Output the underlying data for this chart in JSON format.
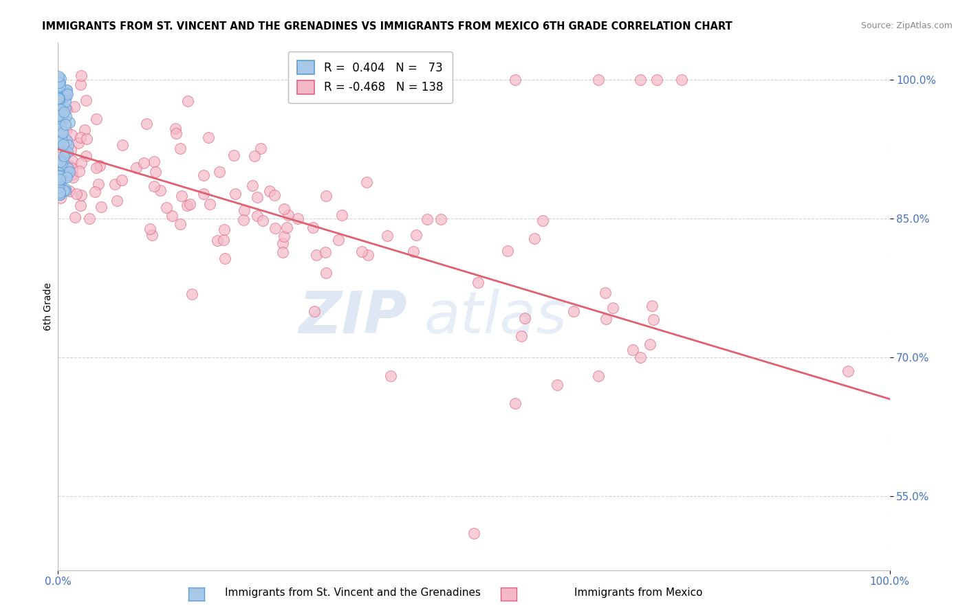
{
  "title": "IMMIGRANTS FROM ST. VINCENT AND THE GRENADINES VS IMMIGRANTS FROM MEXICO 6TH GRADE CORRELATION CHART",
  "source": "Source: ZipAtlas.com",
  "ylabel": "6th Grade",
  "xlim": [
    0.0,
    1.0
  ],
  "ylim": [
    0.47,
    1.04
  ],
  "yticks": [
    0.55,
    0.7,
    0.85,
    1.0
  ],
  "ytick_labels": [
    "55.0%",
    "70.0%",
    "85.0%",
    "100.0%"
  ],
  "blue_color": "#a8c8e8",
  "pink_color": "#f5b8c8",
  "blue_edge": "#5b9bd5",
  "pink_edge": "#e06080",
  "line_color_pink": "#e06070",
  "R_blue": 0.404,
  "N_blue": 73,
  "R_pink": -0.468,
  "N_pink": 138,
  "legend_label_blue": "Immigrants from St. Vincent and the Grenadines",
  "legend_label_pink": "Immigrants from Mexico",
  "watermark_zip": "ZIP",
  "watermark_atlas": "atlas",
  "tick_color": "#4472c4",
  "grid_color": "#cccccc"
}
